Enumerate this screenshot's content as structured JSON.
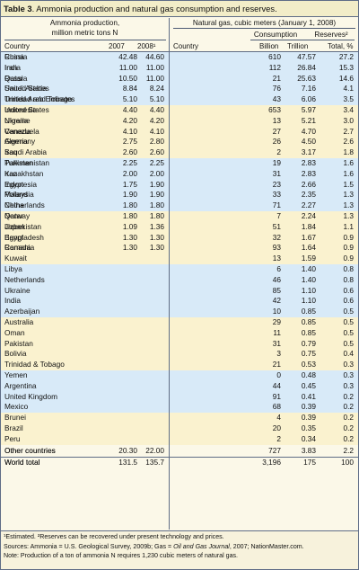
{
  "title": {
    "label": "Table 3",
    "text": ". Ammonia production and natural gas consumption and reserves."
  },
  "left": {
    "group_title_1": "Ammonia production,",
    "group_title_2": "million metric tons N",
    "headers": [
      "Country",
      "2007",
      "2008¹"
    ],
    "rows": [
      [
        "China",
        "42.48",
        "44.60"
      ],
      [
        "India",
        "11.00",
        "11.00"
      ],
      [
        "Russia",
        "10.50",
        "11.00"
      ],
      [
        "United States",
        "8.84",
        "8.24"
      ],
      [
        "Trinidad and Tobago",
        "5.10",
        "5.10"
      ],
      [
        "Indonesia",
        "4.40",
        "4.40"
      ],
      [
        "Ukraine",
        "4.20",
        "4.20"
      ],
      [
        "Canada",
        "4.10",
        "4.10"
      ],
      [
        "Germany",
        "2.75",
        "2.80"
      ],
      [
        "Saudi Arabia",
        "2.60",
        "2.60"
      ],
      [
        "Pakistan",
        "2.25",
        "2.25"
      ],
      [
        "Iran",
        "2.00",
        "2.00"
      ],
      [
        "Egypt",
        "1.75",
        "1.90"
      ],
      [
        "Poland",
        "1.90",
        "1.90"
      ],
      [
        "Netherlands",
        "1.80",
        "1.80"
      ],
      [
        "Qatar",
        "1.80",
        "1.80"
      ],
      [
        "Japan",
        "1.09",
        "1.36"
      ],
      [
        "Bangladesh",
        "1.30",
        "1.30"
      ],
      [
        "Romania",
        "1.30",
        "1.30"
      ]
    ],
    "other": [
      "Other countries",
      "20.30",
      "22.00"
    ],
    "total": [
      "World total",
      "131.5",
      "135.7"
    ]
  },
  "right": {
    "group_title": "Natural gas, cubic meters (January 1, 2008)",
    "consumption": "Consumption",
    "reserves": "Reserves²",
    "headers": [
      "Country",
      "Billion",
      "Trillion",
      "Total, %"
    ],
    "rows": [
      [
        "Russia",
        "610",
        "47.57",
        "27.2"
      ],
      [
        "Iran",
        "112",
        "26.84",
        "15.3"
      ],
      [
        "Qatar",
        "21",
        "25.63",
        "14.6"
      ],
      [
        "Saudi Arabia",
        "76",
        "7.16",
        "4.1"
      ],
      [
        "United Arab Emirates",
        "43",
        "6.06",
        "3.5"
      ],
      [
        "United States",
        "653",
        "5.97",
        "3.4"
      ],
      [
        "Nigeria",
        "13",
        "5.21",
        "3.0"
      ],
      [
        "Venezuela",
        "27",
        "4.70",
        "2.7"
      ],
      [
        "Algeria",
        "26",
        "4.50",
        "2.6"
      ],
      [
        "Iraq",
        "2",
        "3.17",
        "1.8"
      ],
      [
        "Turkmenistan",
        "19",
        "2.83",
        "1.6"
      ],
      [
        "Kazakhstan",
        "31",
        "2.83",
        "1.6"
      ],
      [
        "Indonesia",
        "23",
        "2.66",
        "1.5"
      ],
      [
        "Malaysia",
        "33",
        "2.35",
        "1.3"
      ],
      [
        "China",
        "71",
        "2.27",
        "1.3"
      ],
      [
        "Norway",
        "7",
        "2.24",
        "1.3"
      ],
      [
        "Uzbekistan",
        "51",
        "1.84",
        "1.1"
      ],
      [
        "Egypt",
        "32",
        "1.67",
        "0.9"
      ],
      [
        "Canada",
        "93",
        "1.64",
        "0.9"
      ],
      [
        "Kuwait",
        "13",
        "1.59",
        "0.9"
      ],
      [
        "Libya",
        "6",
        "1.40",
        "0.8"
      ],
      [
        "Netherlands",
        "46",
        "1.40",
        "0.8"
      ],
      [
        "Ukraine",
        "85",
        "1.10",
        "0.6"
      ],
      [
        "India",
        "42",
        "1.10",
        "0.6"
      ],
      [
        "Azerbaijan",
        "10",
        "0.85",
        "0.5"
      ],
      [
        "Australia",
        "29",
        "0.85",
        "0.5"
      ],
      [
        "Oman",
        "11",
        "0.85",
        "0.5"
      ],
      [
        "Pakistan",
        "31",
        "0.79",
        "0.5"
      ],
      [
        "Bolivia",
        "3",
        "0.75",
        "0.4"
      ],
      [
        "Trinidad & Tobago",
        "21",
        "0.53",
        "0.3"
      ],
      [
        "Yemen",
        "0",
        "0.48",
        "0.3"
      ],
      [
        "Argentina",
        "44",
        "0.45",
        "0.3"
      ],
      [
        "United Kingdom",
        "91",
        "0.41",
        "0.2"
      ],
      [
        "Mexico",
        "68",
        "0.39",
        "0.2"
      ],
      [
        "Brunei",
        "4",
        "0.39",
        "0.2"
      ],
      [
        "Brazil",
        "20",
        "0.35",
        "0.2"
      ],
      [
        "Peru",
        "2",
        "0.34",
        "0.2"
      ]
    ],
    "other": [
      "Other countries",
      "727",
      "3.83",
      "2.2"
    ],
    "total": [
      "World total",
      "3,196",
      "175",
      "100"
    ]
  },
  "footnotes": {
    "line1": "¹Estimated. ²Reserves can be recovered under present technology and prices.",
    "line2_pre": "Sources: Ammonia = U.S. Geological Survey, 2009b; Gas = ",
    "line2_em": "Oil and Gas Journal",
    "line2_post": ", 2007; NationMaster.com.",
    "line3": "Note: Production of a ton of ammonia N requires 1,230 cubic meters of natural gas."
  }
}
